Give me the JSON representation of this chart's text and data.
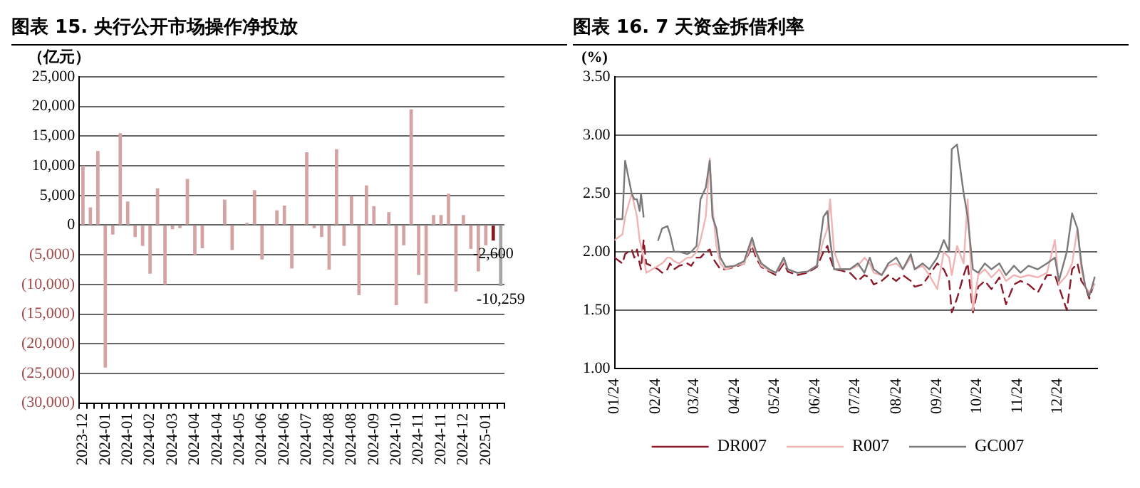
{
  "chart_data": [
    {
      "type": "bar",
      "title": "图表 15. 央行公开市场操作净投放",
      "ylabel": "（亿元）",
      "categories": [
        "2023-12",
        null,
        null,
        "2024-01",
        null,
        null,
        "2024-01",
        null,
        null,
        "2024-02",
        null,
        null,
        "2024-03",
        null,
        null,
        "2024-04",
        null,
        null,
        "2024-04",
        null,
        null,
        "2024-05",
        null,
        null,
        "2024-06",
        null,
        null,
        "2024-06",
        null,
        null,
        "2024-07",
        null,
        null,
        "2024-08",
        null,
        null,
        "2024-08",
        null,
        null,
        "2024-09",
        null,
        null,
        "2024-10",
        null,
        null,
        "2024-11",
        null,
        null,
        "2024-11",
        null,
        null,
        "2024-12",
        null,
        null,
        "2025-01",
        null,
        null
      ],
      "values": [
        10000,
        3000,
        12500,
        -24000,
        -1600,
        15500,
        4000,
        -2000,
        -3500,
        -8200,
        6200,
        -10000,
        -700,
        -500,
        7800,
        -5000,
        -3900,
        0,
        0,
        4300,
        -4200,
        0,
        400,
        5900,
        -5800,
        0,
        2500,
        3300,
        -7300,
        0,
        12300,
        -500,
        -2000,
        -7500,
        12800,
        -3500,
        4900,
        -11800,
        6700,
        3200,
        0,
        2200,
        -13500,
        -3400,
        19500,
        -8400,
        -13200,
        1700,
        1700,
        5300,
        -11200,
        1700,
        -4000,
        -7800,
        -3400,
        -2600,
        -10259
      ],
      "colors": [
        "#d4a3a3",
        "#d4a3a3",
        "#d4a3a3",
        "#d4a3a3",
        "#d4a3a3",
        "#d4a3a3",
        "#d4a3a3",
        "#d4a3a3",
        "#d4a3a3",
        "#d4a3a3",
        "#d4a3a3",
        "#d4a3a3",
        "#d4a3a3",
        "#d4a3a3",
        "#d4a3a3",
        "#d4a3a3",
        "#d4a3a3",
        "#d4a3a3",
        "#d4a3a3",
        "#d4a3a3",
        "#d4a3a3",
        "#d4a3a3",
        "#d4a3a3",
        "#d4a3a3",
        "#d4a3a3",
        "#d4a3a3",
        "#d4a3a3",
        "#d4a3a3",
        "#d4a3a3",
        "#d4a3a3",
        "#d4a3a3",
        "#d4a3a3",
        "#d4a3a3",
        "#d4a3a3",
        "#d4a3a3",
        "#d4a3a3",
        "#d4a3a3",
        "#d4a3a3",
        "#d4a3a3",
        "#d4a3a3",
        "#d4a3a3",
        "#d4a3a3",
        "#d4a3a3",
        "#d4a3a3",
        "#d4a3a3",
        "#d4a3a3",
        "#d4a3a3",
        "#d4a3a3",
        "#d4a3a3",
        "#d4a3a3",
        "#d4a3a3",
        "#d4a3a3",
        "#d4a3a3",
        "#d4a3a3",
        "#d4a3a3",
        "#8b1a1a",
        "#a6a6a6"
      ],
      "value_labels": [
        null,
        null,
        null,
        null,
        null,
        null,
        null,
        null,
        null,
        null,
        null,
        null,
        null,
        null,
        null,
        null,
        null,
        null,
        null,
        null,
        null,
        null,
        null,
        null,
        null,
        null,
        null,
        null,
        null,
        null,
        null,
        null,
        null,
        null,
        null,
        null,
        null,
        null,
        null,
        null,
        null,
        null,
        null,
        null,
        null,
        null,
        null,
        null,
        null,
        null,
        null,
        null,
        null,
        null,
        null,
        "-2,600",
        "-10,259"
      ],
      "ylim": [
        -30000,
        25000
      ],
      "yticks": [
        {
          "value": -30000,
          "label": "(30,000)"
        },
        {
          "value": -25000,
          "label": "(25,000)"
        },
        {
          "value": -20000,
          "label": "(20,000)"
        },
        {
          "value": -15000,
          "label": "(15,000)"
        },
        {
          "value": -10000,
          "label": "(10,000)"
        },
        {
          "value": -5000,
          "label": "(5,000)"
        },
        0,
        {
          "value": 5000,
          "label": "5,000"
        },
        {
          "value": 10000,
          "label": "10,000"
        },
        {
          "value": 15000,
          "label": "15,000"
        },
        {
          "value": 20000,
          "label": "20,000"
        },
        {
          "value": 25000,
          "label": "25,000"
        }
      ],
      "grid": "y"
    },
    {
      "type": "line",
      "title": "图表 16. 7 天资金拆借利率",
      "ylabel": "(%)",
      "x": [
        "2024-01-01",
        "2024-01-07",
        "2024-01-09",
        "2024-01-14",
        "2024-01-16",
        "2024-01-18",
        "2024-01-20",
        "2024-01-21",
        "2024-01-23",
        "2024-01-25",
        "2024-02-03",
        "2024-02-06",
        "2024-02-10",
        "2024-02-12",
        "2024-02-15",
        "2024-02-19",
        "2024-02-25",
        "2024-02-28",
        "2024-03-03",
        "2024-03-06",
        "2024-03-10",
        "2024-03-13",
        "2024-03-15",
        "2024-03-18",
        "2024-03-21",
        "2024-03-25",
        "2024-04-01",
        "2024-04-08",
        "2024-04-14",
        "2024-04-17",
        "2024-04-21",
        "2024-04-27",
        "2024-05-02",
        "2024-05-08",
        "2024-05-11",
        "2024-05-18",
        "2024-05-26",
        "2024-06-02",
        "2024-06-07",
        "2024-06-10",
        "2024-06-12",
        "2024-06-15",
        "2024-06-20",
        "2024-06-27",
        "2024-07-03",
        "2024-07-08",
        "2024-07-12",
        "2024-07-15",
        "2024-07-21",
        "2024-07-26",
        "2024-08-01",
        "2024-08-06",
        "2024-08-12",
        "2024-08-15",
        "2024-08-21",
        "2024-08-26",
        "2024-09-01",
        "2024-09-06",
        "2024-09-10",
        "2024-09-12",
        "2024-09-16",
        "2024-09-21",
        "2024-09-24",
        "2024-09-28",
        "2024-10-02",
        "2024-10-07",
        "2024-10-12",
        "2024-10-18",
        "2024-10-23",
        "2024-10-29",
        "2024-11-03",
        "2024-11-09",
        "2024-11-16",
        "2024-11-23",
        "2024-11-29",
        "2024-12-02",
        "2024-12-08",
        "2024-12-12",
        "2024-12-16",
        "2024-12-19",
        "2024-12-22",
        "2024-12-25",
        "2024-12-29"
      ],
      "series": [
        {
          "name": "DR007",
          "color": "#8b1a2b",
          "line_style": "dashed",
          "values": [
            1.95,
            1.9,
            1.98,
            2.02,
            1.95,
            2.02,
            1.9,
            1.85,
            2.1,
            1.9,
            1.85,
            1.82,
            1.85,
            1.9,
            1.85,
            1.88,
            1.9,
            1.88,
            1.95,
            1.95,
            2.0,
            2.02,
            1.95,
            1.9,
            1.85,
            1.85,
            1.87,
            1.9,
            2.05,
            1.95,
            1.87,
            1.83,
            1.8,
            1.9,
            1.83,
            1.8,
            1.82,
            1.87,
            2.0,
            2.05,
            1.95,
            1.85,
            1.84,
            1.82,
            1.75,
            1.8,
            1.78,
            1.72,
            1.75,
            1.8,
            1.75,
            1.8,
            1.75,
            1.7,
            1.72,
            1.8,
            1.9,
            1.85,
            1.75,
            1.48,
            1.6,
            1.8,
            1.9,
            1.48,
            1.7,
            1.75,
            1.68,
            1.78,
            1.55,
            1.72,
            1.75,
            1.72,
            1.65,
            1.8,
            1.8,
            1.7,
            1.5,
            1.85,
            1.9,
            1.75,
            1.7,
            1.6,
            1.75
          ]
        },
        {
          "name": "R007",
          "color": "#f0b4b4",
          "values": [
            2.1,
            2.15,
            2.3,
            2.5,
            2.4,
            2.3,
            2.1,
            2.05,
            1.95,
            1.82,
            1.88,
            1.9,
            1.95,
            1.95,
            1.92,
            1.9,
            1.95,
            1.95,
            2.0,
            2.1,
            2.3,
            2.8,
            2.4,
            2.05,
            1.9,
            1.85,
            1.88,
            1.9,
            2.08,
            1.98,
            1.88,
            1.84,
            1.82,
            1.92,
            1.85,
            1.82,
            1.83,
            1.88,
            2.1,
            2.2,
            2.45,
            2.0,
            1.85,
            1.85,
            1.88,
            1.95,
            1.9,
            1.82,
            1.8,
            1.88,
            1.9,
            1.85,
            1.95,
            1.85,
            1.88,
            1.8,
            1.68,
            2.0,
            1.95,
            1.8,
            2.05,
            1.9,
            2.45,
            1.5,
            1.8,
            1.85,
            1.78,
            1.85,
            1.75,
            1.8,
            1.78,
            1.8,
            1.78,
            1.82,
            2.1,
            1.72,
            1.8,
            1.9,
            2.2,
            1.85,
            1.7,
            1.65,
            1.72
          ]
        },
        {
          "name": "GC007",
          "color": "#7a7a7a",
          "values": [
            2.28,
            2.28,
            2.78,
            2.5,
            2.45,
            2.45,
            2.35,
            2.5,
            2.3,
            null,
            2.1,
            2.2,
            2.22,
            2.15,
            2.0,
            2.0,
            1.98,
            2.0,
            2.05,
            2.45,
            2.55,
            2.78,
            2.3,
            2.2,
            1.95,
            1.87,
            1.88,
            1.92,
            2.12,
            2.0,
            1.9,
            1.85,
            1.82,
            1.95,
            1.85,
            1.82,
            1.83,
            1.88,
            2.3,
            2.35,
            2.1,
            1.85,
            1.85,
            1.85,
            1.9,
            1.82,
            1.95,
            1.85,
            1.8,
            1.9,
            1.95,
            1.85,
            1.98,
            1.85,
            1.9,
            1.85,
            1.95,
            2.1,
            2.0,
            2.88,
            2.92,
            2.5,
            2.3,
            1.85,
            1.82,
            1.9,
            1.85,
            1.9,
            1.8,
            1.88,
            1.82,
            1.88,
            1.85,
            1.9,
            1.95,
            1.75,
            2.0,
            2.33,
            2.2,
            1.9,
            1.7,
            1.62,
            1.78
          ]
        }
      ],
      "xlim": [
        "2024-01-01",
        "2024-12-31"
      ],
      "xticks": [
        {
          "value": "2024-01-01",
          "label": "01/24"
        },
        {
          "value": "2024-02-01",
          "label": "02/24"
        },
        {
          "value": "2024-03-01",
          "label": "03/24"
        },
        {
          "value": "2024-04-01",
          "label": "04/24"
        },
        {
          "value": "2024-05-01",
          "label": "05/24"
        },
        {
          "value": "2024-06-01",
          "label": "06/24"
        },
        {
          "value": "2024-07-01",
          "label": "07/24"
        },
        {
          "value": "2024-08-01",
          "label": "08/24"
        },
        {
          "value": "2024-09-01",
          "label": "09/24"
        },
        {
          "value": "2024-10-01",
          "label": "10/24"
        },
        {
          "value": "2024-11-01",
          "label": "11/24"
        },
        {
          "value": "2024-12-01",
          "label": "12/24"
        }
      ],
      "ylim": [
        1.0,
        3.5
      ],
      "yticks": [
        {
          "value": 1.0,
          "label": "1.00"
        },
        {
          "value": 1.5,
          "label": "1.50"
        },
        {
          "value": 2.0,
          "label": "2.00"
        },
        {
          "value": 2.5,
          "label": "2.50"
        },
        {
          "value": 3.0,
          "label": "3.00"
        },
        {
          "value": 3.5,
          "label": "3.50"
        }
      ],
      "grid": "y",
      "legend": "bottom",
      "marker": "none"
    }
  ]
}
